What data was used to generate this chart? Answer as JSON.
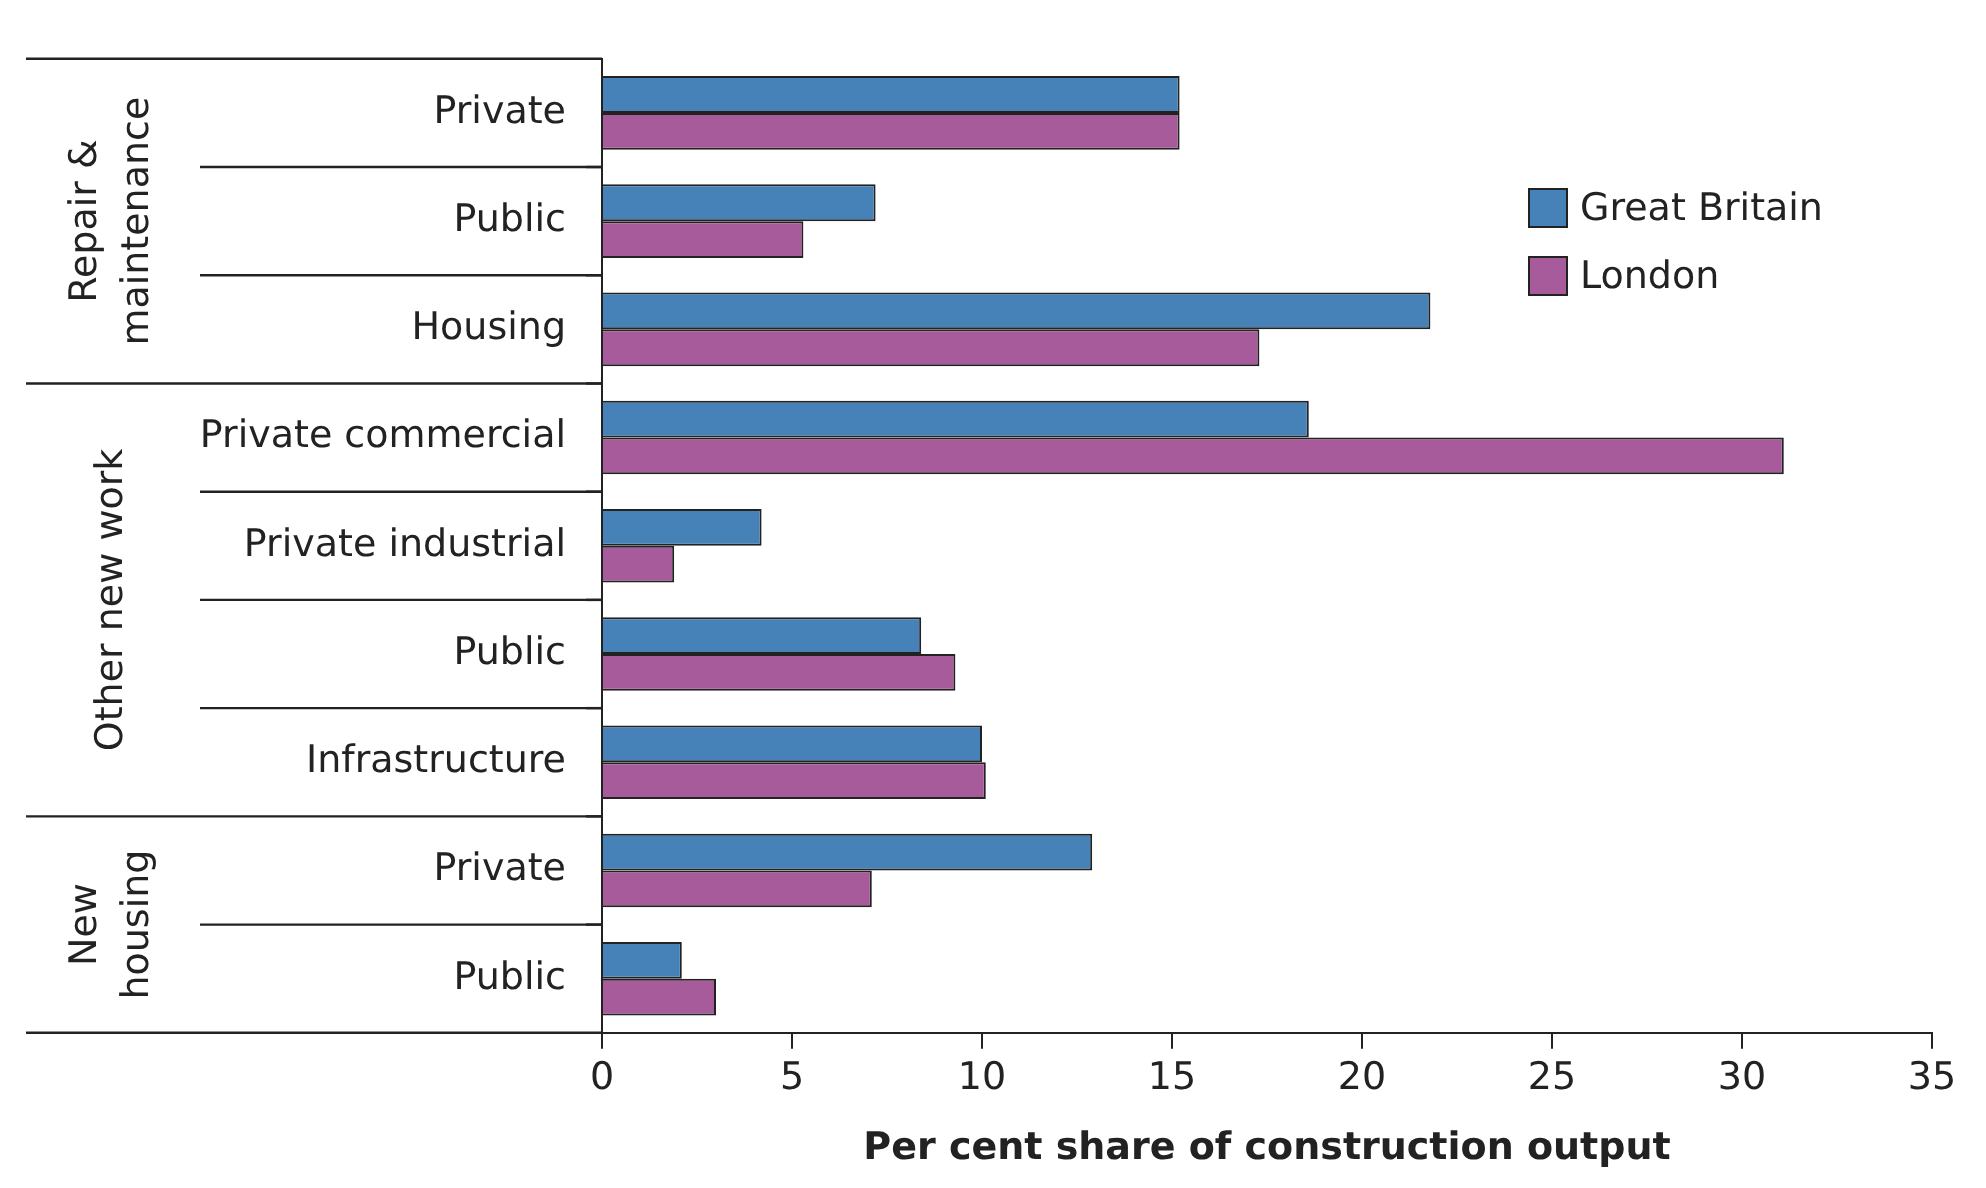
{
  "chart_data": {
    "type": "bar",
    "orientation": "horizontal",
    "xlabel": "Per cent share of construction output",
    "categories": [
      "Private",
      "Public",
      "Housing",
      "Private commercial",
      "Private industrial",
      "Public",
      "Infrastructure",
      "Private",
      "Public"
    ],
    "series": [
      {
        "name": "Great Britain",
        "color": "#4682b8",
        "values": [
          15.2,
          7.2,
          21.8,
          18.6,
          4.2,
          8.4,
          10.0,
          12.9,
          2.1
        ]
      },
      {
        "name": "London",
        "color": "#a85b9a",
        "values": [
          15.2,
          5.3,
          17.3,
          31.1,
          1.9,
          9.3,
          10.1,
          7.1,
          3.0
        ]
      }
    ],
    "xlim": [
      0,
      35
    ],
    "xticks": [
      0,
      5,
      10,
      15,
      20,
      25,
      30,
      35
    ],
    "legend": "top right",
    "annotations": [
      "Repair & maintenance",
      "Other new work",
      "New housing"
    ]
  }
}
